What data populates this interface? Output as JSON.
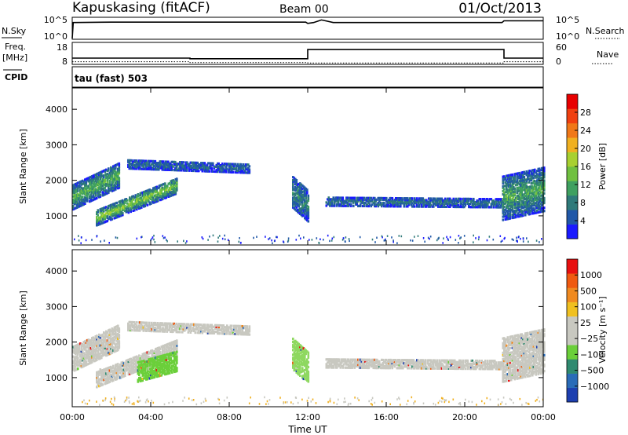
{
  "header": {
    "station": "Kapuskasing (fitACF)",
    "beam": "Beam 00",
    "date": "01/Oct/2013"
  },
  "cpid": {
    "label": "CPID",
    "program": "tau (fast) 503"
  },
  "strip_nsky": {
    "left_label": "N.Sky",
    "left_ticks": [
      "10^5",
      "10^0"
    ],
    "right_label": "N.Search",
    "right_ticks": [
      "10^5",
      "10^0"
    ],
    "series": [
      {
        "t": [
          0.0,
          0.05,
          0.1,
          2,
          4,
          6,
          8,
          10,
          11.9,
          12.0,
          12.3,
          12.7,
          13.0,
          13.3,
          14,
          16,
          18,
          20,
          21.9,
          22.0,
          24
        ],
        "v": [
          0.2,
          3.8,
          3.8,
          3.9,
          3.9,
          3.9,
          3.9,
          3.9,
          3.9,
          3.6,
          3.8,
          4.4,
          4.1,
          3.8,
          3.8,
          3.8,
          3.8,
          3.8,
          3.8,
          4.2,
          4.2
        ]
      }
    ]
  },
  "strip_freq": {
    "left_label": "Freq.",
    "left_unit": "[MHz]",
    "left_ticks": [
      18,
      8
    ],
    "right_label": "Nave",
    "right_ticks": [
      60,
      0
    ],
    "freq_series": {
      "t": [
        0,
        6,
        6,
        12,
        12,
        22,
        22,
        24
      ],
      "v": [
        10.2,
        10.2,
        9.8,
        9.8,
        16.3,
        16.3,
        10.2,
        10.2
      ]
    },
    "nave_series": {
      "t": [
        0,
        6,
        6,
        12,
        12,
        22,
        22,
        24
      ],
      "v": [
        6,
        6,
        3,
        3,
        2,
        2,
        6,
        6
      ]
    }
  },
  "chart_data": [
    {
      "type": "heatmap",
      "name": "power",
      "ylabel": "Slant Range [km]",
      "y_ticks": [
        1000,
        2000,
        3000,
        4000
      ],
      "ylim": [
        180,
        4600
      ],
      "x_ticks": [
        "00:00",
        "04:00",
        "08:00",
        "12:00",
        "16:00",
        "20:00",
        "00:00"
      ],
      "xlim": [
        0,
        24
      ],
      "colorbar": {
        "label": "Power [dB]",
        "ticks": [
          "28",
          "24",
          "20",
          "16",
          "12",
          "8",
          "4"
        ],
        "colors": [
          "#1a1aff",
          "#2158a8",
          "#2f7a7a",
          "#3fa060",
          "#70c040",
          "#a8d030",
          "#f0b020",
          "#f07818",
          "#f04010",
          "#e80000"
        ]
      },
      "bands": [
        {
          "t0": 0.0,
          "t1": 2.4,
          "r0": 1150,
          "r1": 1850,
          "slope": 260,
          "v": 10
        },
        {
          "t0": 1.2,
          "t1": 5.3,
          "r0": 700,
          "r1": 1150,
          "slope": 220,
          "v": 13
        },
        {
          "t0": 2.8,
          "t1": 9.0,
          "r0": 2300,
          "r1": 2550,
          "slope": -20,
          "v": 3
        },
        {
          "t0": 11.2,
          "t1": 12.0,
          "r0": 1200,
          "r1": 2100,
          "slope": -500,
          "v": 6
        },
        {
          "t0": 12.9,
          "t1": 21.9,
          "r0": 1250,
          "r1": 1500,
          "slope": -5,
          "v": 4
        },
        {
          "t0": 21.9,
          "t1": 24.0,
          "r0": 850,
          "r1": 2100,
          "slope": 120,
          "v": 9
        }
      ]
    },
    {
      "type": "heatmap",
      "name": "velocity",
      "ylabel": "Slant Range [km]",
      "y_ticks": [
        1000,
        2000,
        3000,
        4000
      ],
      "ylim": [
        180,
        4600
      ],
      "x_ticks": [
        "00:00",
        "04:00",
        "08:00",
        "12:00",
        "16:00",
        "20:00",
        "00:00"
      ],
      "xlim": [
        0,
        24
      ],
      "xlabel": "Time UT",
      "colorbar": {
        "label": "Velocity [m s⁻¹]",
        "ticks": [
          "1000",
          "500",
          "100",
          "25",
          "−25",
          "−100",
          "−500",
          "−1000"
        ],
        "colors": [
          "#1d3fb0",
          "#2a6cb8",
          "#2f8a70",
          "#6bcf3a",
          "#c8c8c0",
          "#c8c8c0",
          "#f0c020",
          "#f08a20",
          "#f05a10",
          "#e81010"
        ]
      },
      "bands": [
        {
          "t0": 0.0,
          "t1": 2.4,
          "r0": 1150,
          "r1": 1850,
          "slope": 260,
          "c": "#c8c8c0"
        },
        {
          "t0": 1.2,
          "t1": 5.3,
          "r0": 700,
          "r1": 1150,
          "slope": 220,
          "c": "#c8c8c0"
        },
        {
          "t0": 3.3,
          "t1": 5.3,
          "r0": 850,
          "r1": 1400,
          "slope": 150,
          "c": "#6bcf3a"
        },
        {
          "t0": 2.8,
          "t1": 9.0,
          "r0": 2300,
          "r1": 2550,
          "slope": -20,
          "c": "#c8c8c0"
        },
        {
          "t0": 11.2,
          "t1": 12.0,
          "r0": 1200,
          "r1": 2100,
          "slope": -500,
          "c": "#8ed860"
        },
        {
          "t0": 12.9,
          "t1": 21.9,
          "r0": 1250,
          "r1": 1500,
          "slope": -5,
          "c": "#c8c8c0"
        },
        {
          "t0": 21.9,
          "t1": 24.0,
          "r0": 850,
          "r1": 2100,
          "slope": 120,
          "c": "#c8c8c0"
        }
      ]
    }
  ]
}
